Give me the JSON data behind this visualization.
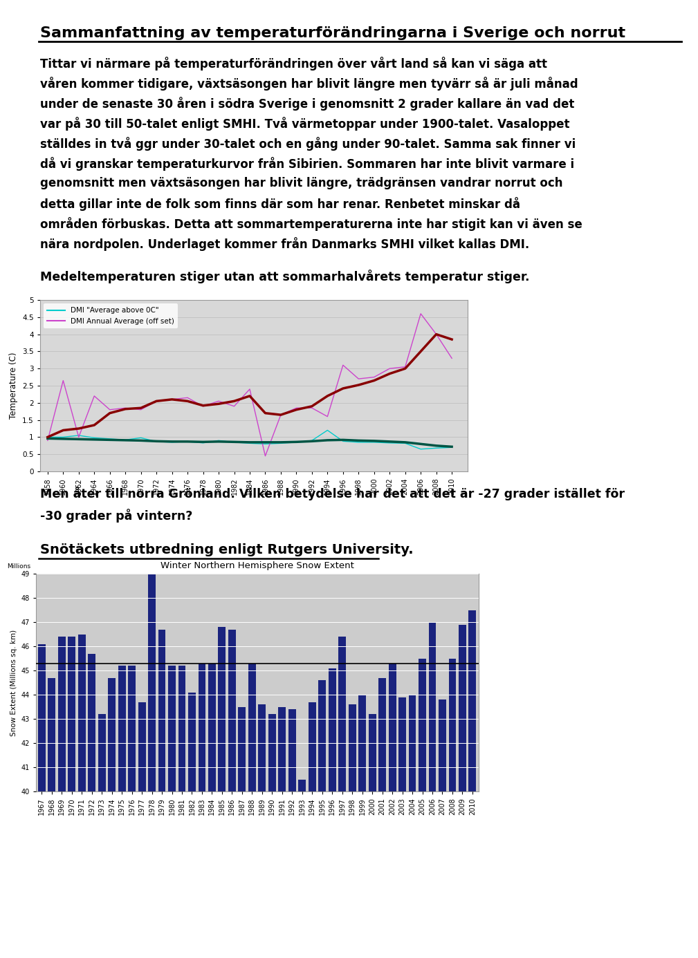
{
  "title": "Sammanfattning av temperaturförändringarna i Sverige och norrut",
  "para1_lines": [
    "Tittar vi närmare på temperaturförändringen över vårt land så kan vi säga att",
    "våren kommer tidigare, växtsäsongen har blivit längre men tyvärr så är juli månad",
    "under de senaste 30 åren i södra Sverige i genomsnitt 2 grader kallare än vad det",
    "var på 30 till 50-talet enligt SMHI. Två värmetoppar under 1900-talet. Vasaloppet",
    "ställdes in två ggr under 30-talet och en gång under 90-talet. Samma sak finner vi",
    "då vi granskar temperaturkurvor från Sibirien. Sommaren har inte blivit varmare i",
    "genomsnitt men växtsäsongen har blivit längre, trädgränsen vandrar norrut och",
    "detta gillar inte de folk som finns där som har renar. Renbetet minskar då",
    "områden förbuskas. Detta att sommartemperaturerna inte har stigit kan vi även se",
    "nära nordpolen. Underlaget kommer från Danmarks SMHI vilket kallas DMI."
  ],
  "para2": "Medeltemperaturen stiger utan att sommarhalvårets temperatur stiger.",
  "chart1_legend1": "DMI \"Average above 0C\"",
  "chart1_legend2": "DMI Annual Average (off set)",
  "chart1_color_cyan": "#00CCCC",
  "chart1_color_purple": "#CC44CC",
  "chart1_color_green": "#005544",
  "chart1_color_red": "#880000",
  "chart1_years": [
    1958,
    1960,
    1962,
    1964,
    1966,
    1968,
    1970,
    1972,
    1974,
    1976,
    1978,
    1980,
    1982,
    1984,
    1986,
    1988,
    1990,
    1992,
    1994,
    1996,
    1998,
    2000,
    2002,
    2004,
    2006,
    2008,
    2010
  ],
  "chart1_dmi_avg_thin": [
    1.0,
    1.0,
    1.05,
    0.98,
    0.95,
    0.92,
    0.98,
    0.87,
    0.85,
    0.87,
    0.83,
    0.9,
    0.85,
    0.82,
    0.8,
    0.82,
    0.85,
    0.9,
    1.2,
    0.88,
    0.85,
    0.85,
    0.83,
    0.82,
    0.65,
    0.68,
    0.7
  ],
  "chart1_dmi_avg_thick": [
    0.96,
    0.95,
    0.94,
    0.93,
    0.92,
    0.91,
    0.9,
    0.88,
    0.87,
    0.87,
    0.86,
    0.87,
    0.86,
    0.85,
    0.85,
    0.85,
    0.86,
    0.88,
    0.91,
    0.92,
    0.9,
    0.89,
    0.87,
    0.85,
    0.8,
    0.75,
    0.72
  ],
  "chart1_annual_thin": [
    0.9,
    2.65,
    1.0,
    2.2,
    1.8,
    1.85,
    1.8,
    2.05,
    2.1,
    2.15,
    1.9,
    2.05,
    1.9,
    2.4,
    0.45,
    1.65,
    1.85,
    1.85,
    1.6,
    3.1,
    2.7,
    2.75,
    3.0,
    3.05,
    4.6,
    4.0,
    3.3
  ],
  "chart1_annual_thick": [
    1.0,
    1.2,
    1.25,
    1.35,
    1.7,
    1.82,
    1.85,
    2.05,
    2.1,
    2.05,
    1.92,
    1.97,
    2.05,
    2.2,
    1.7,
    1.65,
    1.8,
    1.9,
    2.2,
    2.42,
    2.52,
    2.65,
    2.85,
    3.0,
    3.5,
    4.0,
    3.85
  ],
  "para3a": "Men åter till norra Grönland. Vilken betydelse har det att det är -27 grader istället för",
  "para3b": "-30 grader på vintern?",
  "para4": "Snötäckets utbredning enligt Rutgers University.",
  "chart2_title": "Winter Northern Hemisphere Snow Extent",
  "chart2_ylabel": "Snow Extent (Millions sq. km)",
  "chart2_bar_color": "#1a237e",
  "chart2_bg_color": "#cccccc",
  "chart2_years": [
    "1967",
    "1968",
    "1969",
    "1970",
    "1971",
    "1972",
    "1973",
    "1974",
    "1975",
    "1976",
    "1977",
    "1978",
    "1979",
    "1980",
    "1981",
    "1982",
    "1983",
    "1984",
    "1985",
    "1986",
    "1987",
    "1988",
    "1989",
    "1990",
    "1991",
    "1992",
    "1993",
    "1994",
    "1995",
    "1996",
    "1997",
    "1998",
    "1999",
    "2000",
    "2001",
    "2002",
    "2003",
    "2004",
    "2005",
    "2006",
    "2007",
    "2008",
    "2009",
    "2010"
  ],
  "chart2_values": [
    46.1,
    44.7,
    46.4,
    46.4,
    46.5,
    45.7,
    43.2,
    44.7,
    45.2,
    45.2,
    43.7,
    49.0,
    46.7,
    45.2,
    45.2,
    44.1,
    45.3,
    45.3,
    46.8,
    46.7,
    43.5,
    45.3,
    43.6,
    43.2,
    43.5,
    43.4,
    40.5,
    43.7,
    44.6,
    45.1,
    46.4,
    43.6,
    44.0,
    43.2,
    44.7,
    45.3,
    43.9,
    44.0,
    45.5,
    47.0,
    43.8,
    45.5,
    46.9,
    47.5
  ],
  "chart2_mean": 45.3,
  "chart2_ylim_min": 40,
  "chart2_ylim_max": 49,
  "chart2_yticks": [
    40,
    41,
    42,
    43,
    44,
    45,
    46,
    47,
    48,
    49
  ]
}
